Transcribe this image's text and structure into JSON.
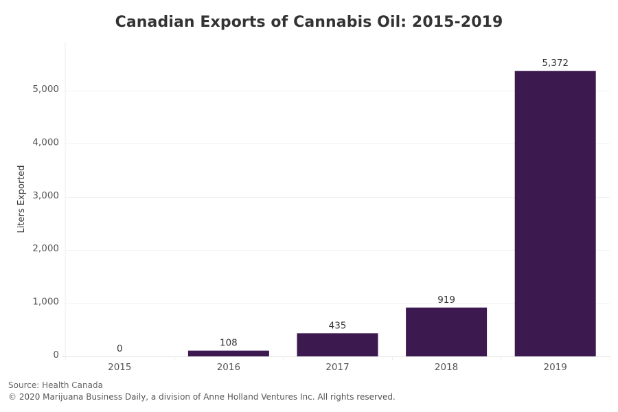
{
  "chart_data": {
    "type": "bar",
    "title": "Canadian Exports of Cannabis Oil: 2015-2019",
    "xlabel": "",
    "ylabel": "Liters Exported",
    "categories": [
      "2015",
      "2016",
      "2017",
      "2018",
      "2019"
    ],
    "values": [
      0,
      108,
      435,
      919,
      5372
    ],
    "data_labels": [
      "0",
      "108",
      "435",
      "919",
      "5,372"
    ],
    "yticks": [
      0,
      1000,
      2000,
      3000,
      4000,
      5000
    ],
    "ytick_labels": [
      "0",
      "1,000",
      "2,000",
      "3,000",
      "4,000",
      "5,000"
    ],
    "ylim": [
      0,
      5540
    ],
    "grid": true,
    "legend": "none",
    "bar_color": "#3c1a50"
  },
  "footer": {
    "source": "Source: Health Canada",
    "copyright": "© 2020 Marijuana Business Daily, a division of Anne Holland Ventures Inc. All rights reserved."
  }
}
